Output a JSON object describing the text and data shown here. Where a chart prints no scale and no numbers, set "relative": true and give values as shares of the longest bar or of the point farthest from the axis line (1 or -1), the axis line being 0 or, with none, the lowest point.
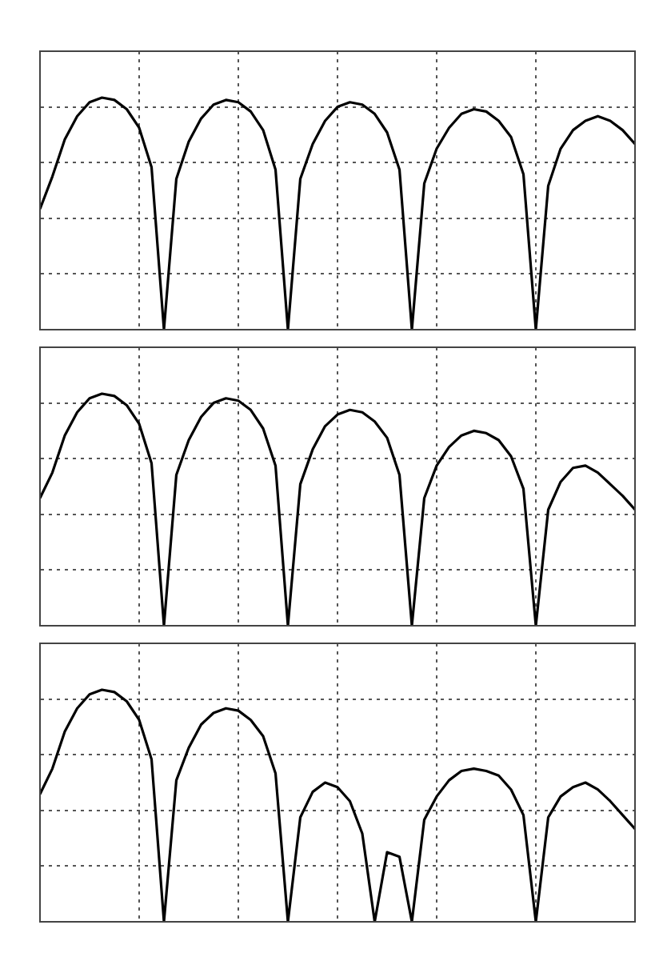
{
  "chart_data": [
    {
      "type": "line",
      "relative": true,
      "grid": true,
      "marker": "none",
      "categories": [
        null,
        null,
        null,
        null,
        null,
        null,
        null,
        null,
        null,
        null,
        null,
        null,
        null,
        null,
        null,
        null,
        null,
        null,
        null,
        null,
        null,
        null,
        null,
        null,
        null,
        null,
        null,
        null,
        null,
        null,
        null,
        null,
        null,
        null,
        null,
        null,
        null,
        null,
        null,
        null,
        null,
        null,
        null,
        null,
        null,
        null,
        null,
        null,
        null
      ],
      "series": [
        {
          "color": "#000000",
          "values": [
            0.52,
            0.66,
            0.82,
            0.92,
            0.98,
            1,
            0.99,
            0.95,
            0.87,
            0.7,
            0,
            0.65,
            0.81,
            0.91,
            0.97,
            0.99,
            0.98,
            0.94,
            0.86,
            0.69,
            0,
            0.65,
            0.8,
            0.9,
            0.96,
            0.98,
            0.97,
            0.93,
            0.85,
            0.69,
            0,
            0.63,
            0.78,
            0.87,
            0.93,
            0.95,
            0.94,
            0.9,
            0.83,
            0.67,
            0,
            0.62,
            0.78,
            0.86,
            0.9,
            0.92,
            0.9,
            0.86,
            0.8
          ]
        }
      ]
    },
    {
      "type": "line",
      "relative": true,
      "grid": true,
      "marker": "none",
      "categories": [
        null,
        null,
        null,
        null,
        null,
        null,
        null,
        null,
        null,
        null,
        null,
        null,
        null,
        null,
        null,
        null,
        null,
        null,
        null,
        null,
        null,
        null,
        null,
        null,
        null,
        null,
        null,
        null,
        null,
        null,
        null,
        null,
        null,
        null,
        null,
        null,
        null,
        null,
        null,
        null,
        null,
        null,
        null,
        null,
        null,
        null,
        null,
        null,
        null
      ],
      "series": [
        {
          "color": "#000000",
          "values": [
            0.55,
            0.66,
            0.82,
            0.92,
            0.98,
            1,
            0.99,
            0.95,
            0.87,
            0.7,
            0,
            0.65,
            0.8,
            0.9,
            0.96,
            0.98,
            0.97,
            0.93,
            0.85,
            0.69,
            0,
            0.61,
            0.76,
            0.86,
            0.91,
            0.93,
            0.92,
            0.88,
            0.81,
            0.65,
            0,
            0.55,
            0.69,
            0.77,
            0.82,
            0.84,
            0.83,
            0.8,
            0.73,
            0.59,
            0,
            0.5,
            0.62,
            0.68,
            0.69,
            0.66,
            0.61,
            0.56,
            0.5
          ]
        }
      ]
    },
    {
      "type": "line",
      "relative": true,
      "grid": true,
      "marker": "none",
      "categories": [
        null,
        null,
        null,
        null,
        null,
        null,
        null,
        null,
        null,
        null,
        null,
        null,
        null,
        null,
        null,
        null,
        null,
        null,
        null,
        null,
        null,
        null,
        null,
        null,
        null,
        null,
        null,
        null,
        null,
        null,
        null,
        null,
        null,
        null,
        null,
        null,
        null,
        null,
        null,
        null,
        null,
        null,
        null,
        null,
        null,
        null,
        null,
        null,
        null
      ],
      "series": [
        {
          "color": "#000000",
          "values": [
            0.55,
            0.66,
            0.82,
            0.92,
            0.98,
            1,
            0.99,
            0.95,
            0.87,
            0.7,
            0,
            0.61,
            0.75,
            0.85,
            0.9,
            0.92,
            0.91,
            0.87,
            0.8,
            0.64,
            0,
            0.45,
            0.56,
            0.6,
            0.58,
            0.52,
            0.38,
            0,
            0.3,
            0.28,
            0,
            0.44,
            0.54,
            0.61,
            0.65,
            0.66,
            0.65,
            0.63,
            0.57,
            0.46,
            0,
            0.45,
            0.54,
            0.58,
            0.6,
            0.57,
            0.52,
            0.46,
            0.4
          ]
        }
      ]
    }
  ]
}
